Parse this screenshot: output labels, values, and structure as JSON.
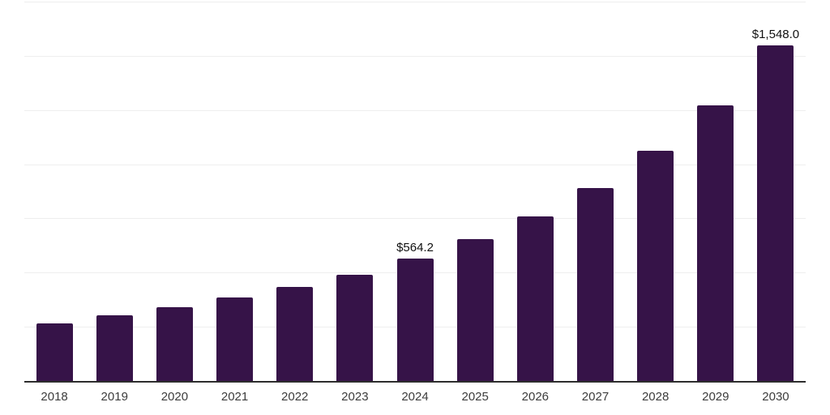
{
  "chart_data": {
    "type": "bar",
    "title": "",
    "xlabel": "",
    "ylabel": "",
    "categories": [
      "2018",
      "2019",
      "2020",
      "2021",
      "2022",
      "2023",
      "2024",
      "2025",
      "2026",
      "2027",
      "2028",
      "2029",
      "2030"
    ],
    "values": [
      266,
      302,
      339,
      385,
      435,
      490,
      564.2,
      653,
      760,
      890,
      1061,
      1271,
      1548.0
    ],
    "data_labels": {
      "2024": "$564.2",
      "2030": "$1,548.0"
    },
    "ylim": [
      0,
      1750
    ],
    "gridline_step": 250,
    "grid_on": true,
    "legend": "none",
    "bar_color": "#361348",
    "gridline_color": "#eeeeee",
    "axis_line_color": "#2d2d2d",
    "tick_label_color": "#3c3c3c",
    "data_label_color": "#111111"
  }
}
